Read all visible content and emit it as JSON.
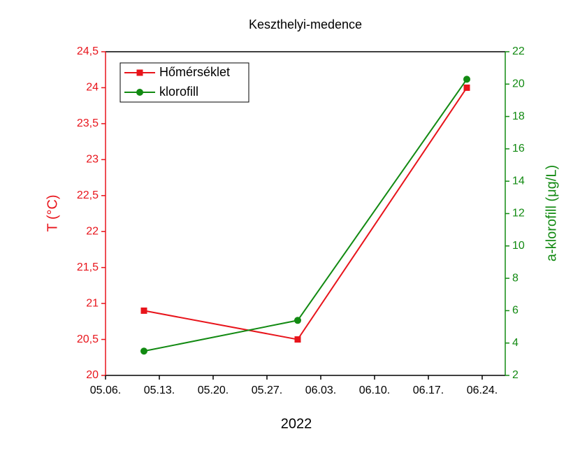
{
  "chart_data": {
    "type": "line",
    "title": "Keszthelyi-medence",
    "x_label": "2022",
    "y_label": "T (°C)",
    "y2_label": "a-klorofill (μg/L)",
    "x": [
      "05.11.",
      "05.31.",
      "06.22."
    ],
    "xlim": [
      "05.06.",
      "06.27."
    ],
    "xticks": [
      "05.06.",
      "05.13.",
      "05.20.",
      "05.27.",
      "06.03.",
      "06.10.",
      "06.17.",
      "06.24."
    ],
    "ylim": [
      20,
      24.5
    ],
    "yticks": [
      20,
      {
        "value": 20.5,
        "label": "20,5"
      },
      21,
      {
        "value": 21.5,
        "label": "21,5"
      },
      22,
      {
        "value": 22.5,
        "label": "22,5"
      },
      23,
      {
        "value": 23.5,
        "label": "23,5"
      },
      24,
      {
        "value": 24.5,
        "label": "24,5"
      }
    ],
    "y2lim": [
      2,
      22
    ],
    "y2ticks": [
      2,
      4,
      6,
      8,
      10,
      12,
      14,
      16,
      18,
      20,
      22
    ],
    "legend": "upper left",
    "series": [
      {
        "name": "Hőmérséklet",
        "color": "#e8141b",
        "marker": "square",
        "values": [
          20.9,
          20.5,
          24
        ]
      },
      {
        "name": "klorofill",
        "color": "#128a12",
        "marker": "circle",
        "axis": "y2",
        "values": [
          3.5,
          5.4,
          20.3
        ]
      }
    ]
  }
}
